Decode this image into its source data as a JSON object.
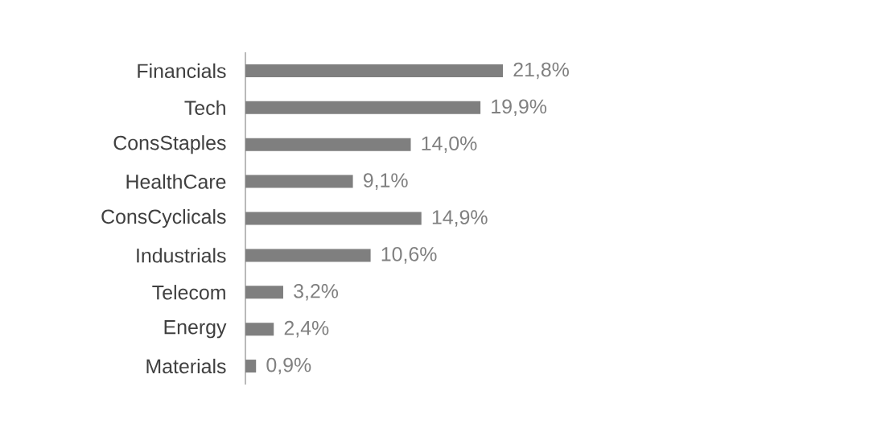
{
  "chart_data": {
    "type": "bar",
    "orientation": "horizontal",
    "categories": [
      "Financials",
      "Tech",
      "ConsStaples",
      "HealthCare",
      "ConsCyclicals",
      "Industrials",
      "Telecom",
      "Energy",
      "Materials"
    ],
    "values": [
      21.8,
      19.9,
      14.0,
      9.1,
      14.9,
      10.6,
      3.2,
      2.4,
      0.9
    ],
    "value_labels": [
      "21,8%",
      "19,9%",
      "14,0%",
      "9,1%",
      "14,9%",
      "10,6%",
      "3,2%",
      "2,4%",
      "0,9%"
    ],
    "color": "#7f7f7f"
  }
}
